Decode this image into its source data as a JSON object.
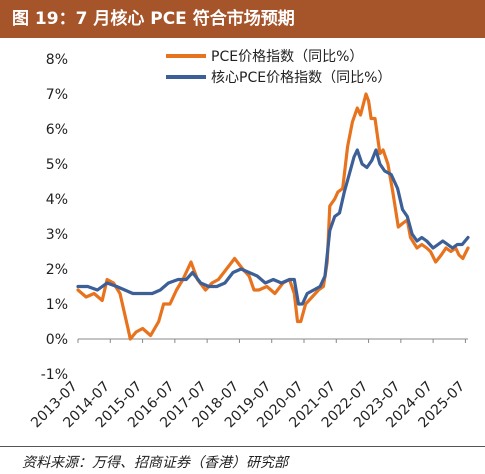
{
  "figure": {
    "title": "图 19：7 月核心 PCE 符合市场预期",
    "source": "资料来源：万得、招商证券（香港）研究部"
  },
  "colors": {
    "title_bg": "#a6542a",
    "pce": "#e8731e",
    "core_pce": "#3b5f96"
  },
  "chart_data": {
    "type": "line",
    "ylim": [
      -1,
      8
    ],
    "yticks": [
      "-1%",
      "0%",
      "1%",
      "2%",
      "3%",
      "4%",
      "5%",
      "6%",
      "7%",
      "8%"
    ],
    "xlim": [
      2013.5,
      2025.58
    ],
    "xticks": [
      "2013-07",
      "2014-07",
      "2015-07",
      "2016-07",
      "2017-07",
      "2018-07",
      "2019-07",
      "2020-07",
      "2021-07",
      "2022-07",
      "2023-07",
      "2024-07",
      "2025-07"
    ],
    "legend_position": "top-right",
    "series": [
      {
        "name": "PCE价格指数（同比%）",
        "color": "#e8731e",
        "points": [
          [
            2013.5,
            1.4
          ],
          [
            2013.75,
            1.2
          ],
          [
            2014.0,
            1.3
          ],
          [
            2014.25,
            1.1
          ],
          [
            2014.4,
            1.7
          ],
          [
            2014.6,
            1.6
          ],
          [
            2014.8,
            1.3
          ],
          [
            2014.95,
            0.7
          ],
          [
            2015.05,
            0.3
          ],
          [
            2015.12,
            0.0
          ],
          [
            2015.3,
            0.2
          ],
          [
            2015.5,
            0.3
          ],
          [
            2015.75,
            0.1
          ],
          [
            2016.0,
            0.5
          ],
          [
            2016.15,
            1.0
          ],
          [
            2016.35,
            1.0
          ],
          [
            2016.55,
            1.4
          ],
          [
            2016.75,
            1.7
          ],
          [
            2017.0,
            2.2
          ],
          [
            2017.2,
            1.7
          ],
          [
            2017.45,
            1.4
          ],
          [
            2017.65,
            1.6
          ],
          [
            2017.85,
            1.7
          ],
          [
            2018.1,
            2.0
          ],
          [
            2018.35,
            2.3
          ],
          [
            2018.6,
            2.0
          ],
          [
            2018.8,
            1.8
          ],
          [
            2018.95,
            1.4
          ],
          [
            2019.1,
            1.4
          ],
          [
            2019.35,
            1.5
          ],
          [
            2019.6,
            1.3
          ],
          [
            2019.85,
            1.6
          ],
          [
            2020.05,
            1.7
          ],
          [
            2020.2,
            1.3
          ],
          [
            2020.3,
            0.5
          ],
          [
            2020.4,
            0.5
          ],
          [
            2020.55,
            1.0
          ],
          [
            2020.75,
            1.2
          ],
          [
            2020.95,
            1.4
          ],
          [
            2021.1,
            1.5
          ],
          [
            2021.22,
            2.2
          ],
          [
            2021.3,
            3.8
          ],
          [
            2021.45,
            4.0
          ],
          [
            2021.55,
            4.2
          ],
          [
            2021.7,
            4.3
          ],
          [
            2021.85,
            5.5
          ],
          [
            2022.0,
            6.2
          ],
          [
            2022.15,
            6.6
          ],
          [
            2022.25,
            6.4
          ],
          [
            2022.42,
            7.0
          ],
          [
            2022.5,
            6.8
          ],
          [
            2022.58,
            6.3
          ],
          [
            2022.7,
            6.3
          ],
          [
            2022.85,
            5.3
          ],
          [
            2022.95,
            5.4
          ],
          [
            2023.1,
            5.0
          ],
          [
            2023.25,
            4.2
          ],
          [
            2023.42,
            3.2
          ],
          [
            2023.55,
            3.3
          ],
          [
            2023.7,
            3.4
          ],
          [
            2023.8,
            2.9
          ],
          [
            2024.0,
            2.6
          ],
          [
            2024.15,
            2.7
          ],
          [
            2024.3,
            2.6
          ],
          [
            2024.42,
            2.5
          ],
          [
            2024.58,
            2.2
          ],
          [
            2024.75,
            2.4
          ],
          [
            2024.9,
            2.6
          ],
          [
            2025.05,
            2.5
          ],
          [
            2025.2,
            2.6
          ],
          [
            2025.3,
            2.4
          ],
          [
            2025.42,
            2.3
          ],
          [
            2025.58,
            2.6
          ]
        ]
      },
      {
        "name": "核心PCE价格指数（同比%）",
        "color": "#3b5f96",
        "points": [
          [
            2013.5,
            1.5
          ],
          [
            2013.8,
            1.5
          ],
          [
            2014.1,
            1.4
          ],
          [
            2014.4,
            1.6
          ],
          [
            2014.7,
            1.5
          ],
          [
            2014.95,
            1.4
          ],
          [
            2015.2,
            1.3
          ],
          [
            2015.5,
            1.3
          ],
          [
            2015.8,
            1.3
          ],
          [
            2016.05,
            1.4
          ],
          [
            2016.3,
            1.6
          ],
          [
            2016.6,
            1.7
          ],
          [
            2016.85,
            1.7
          ],
          [
            2017.05,
            1.9
          ],
          [
            2017.3,
            1.6
          ],
          [
            2017.55,
            1.5
          ],
          [
            2017.8,
            1.5
          ],
          [
            2018.05,
            1.6
          ],
          [
            2018.3,
            1.9
          ],
          [
            2018.55,
            2.0
          ],
          [
            2018.8,
            1.9
          ],
          [
            2019.05,
            1.8
          ],
          [
            2019.3,
            1.6
          ],
          [
            2019.55,
            1.7
          ],
          [
            2019.8,
            1.6
          ],
          [
            2020.05,
            1.7
          ],
          [
            2020.2,
            1.7
          ],
          [
            2020.33,
            1.0
          ],
          [
            2020.45,
            1.0
          ],
          [
            2020.6,
            1.3
          ],
          [
            2020.8,
            1.4
          ],
          [
            2021.0,
            1.5
          ],
          [
            2021.15,
            1.8
          ],
          [
            2021.3,
            3.1
          ],
          [
            2021.45,
            3.5
          ],
          [
            2021.6,
            3.6
          ],
          [
            2021.75,
            4.2
          ],
          [
            2021.9,
            4.7
          ],
          [
            2022.05,
            5.2
          ],
          [
            2022.15,
            5.4
          ],
          [
            2022.3,
            5.0
          ],
          [
            2022.45,
            4.9
          ],
          [
            2022.6,
            5.1
          ],
          [
            2022.73,
            5.4
          ],
          [
            2022.85,
            5.0
          ],
          [
            2023.0,
            4.8
          ],
          [
            2023.2,
            4.7
          ],
          [
            2023.4,
            4.3
          ],
          [
            2023.55,
            3.7
          ],
          [
            2023.7,
            3.5
          ],
          [
            2023.85,
            3.0
          ],
          [
            2024.0,
            2.8
          ],
          [
            2024.15,
            2.9
          ],
          [
            2024.3,
            2.8
          ],
          [
            2024.5,
            2.6
          ],
          [
            2024.65,
            2.7
          ],
          [
            2024.8,
            2.8
          ],
          [
            2024.95,
            2.7
          ],
          [
            2025.1,
            2.6
          ],
          [
            2025.25,
            2.7
          ],
          [
            2025.4,
            2.7
          ],
          [
            2025.58,
            2.9
          ]
        ]
      }
    ]
  }
}
